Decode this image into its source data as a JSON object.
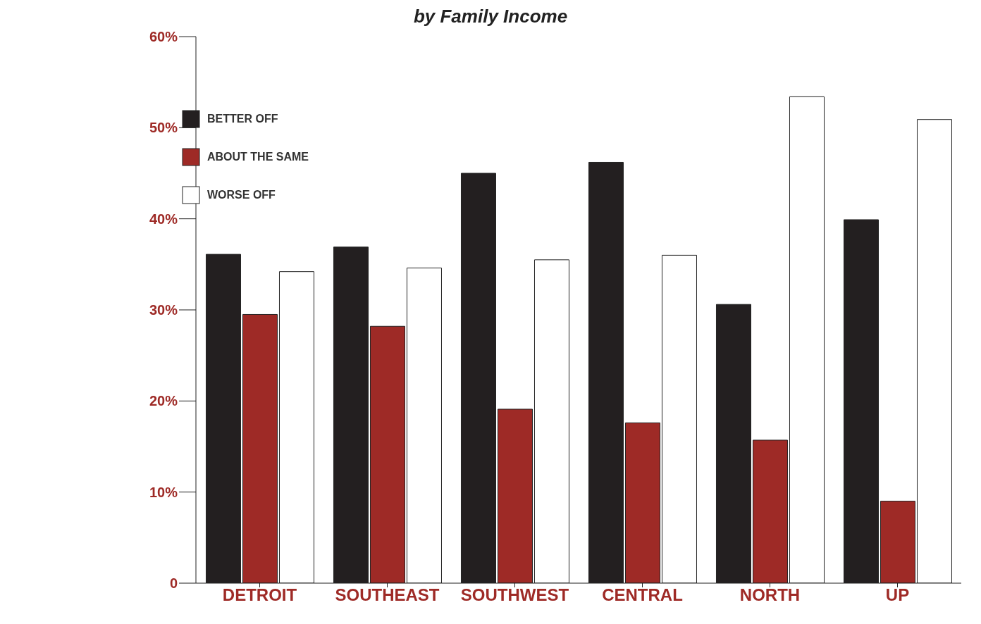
{
  "chart_data": {
    "type": "bar",
    "title": "by Family Income",
    "categories": [
      "DETROIT",
      "SOUTHEAST",
      "SOUTHWEST",
      "CENTRAL",
      "NORTH",
      "UP"
    ],
    "series": [
      {
        "name": "BETTER OFF",
        "color": "#231f20",
        "values": [
          36.1,
          36.9,
          45,
          46.2,
          30.6,
          39.9
        ]
      },
      {
        "name": "ABOUT THE SAME",
        "color": "#9e2a26",
        "values": [
          29.5,
          28.2,
          19.1,
          17.6,
          15.7,
          9
        ]
      },
      {
        "name": "WORSE OFF",
        "color": "#ffffff",
        "values": [
          34.2,
          34.6,
          35.5,
          36,
          53.4,
          50.9
        ]
      }
    ],
    "ylim": [
      0,
      60
    ],
    "yticks": [
      0,
      {
        "value": 10,
        "label": "10%"
      },
      {
        "value": 20,
        "label": "20%"
      },
      {
        "value": 30,
        "label": "30%"
      },
      {
        "value": 40,
        "label": "40%"
      },
      {
        "value": 50,
        "label": "50%"
      },
      {
        "value": 60,
        "label": "60%"
      }
    ],
    "legend": "top left",
    "grid": false
  }
}
